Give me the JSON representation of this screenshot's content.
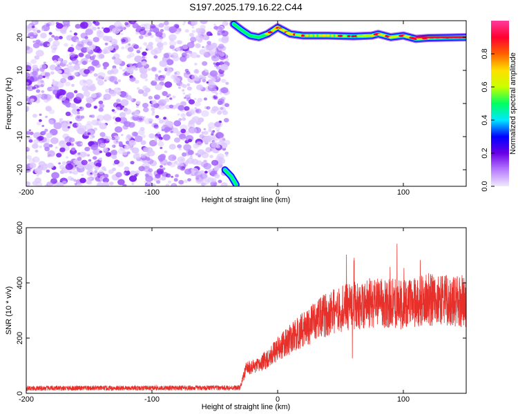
{
  "title": "S197.2025.179.16.22.C44",
  "chart_data": [
    {
      "type": "heatmap",
      "xlabel": "Height of straight line (km)",
      "ylabel": "Frequency (Hz)",
      "xlim": [
        -200,
        150
      ],
      "ylim": [
        -25,
        25
      ],
      "xticks": [
        -200,
        -100,
        0,
        100
      ],
      "yticks": [
        20,
        10,
        0,
        -10,
        -20
      ],
      "colorbar": {
        "label": "Normalized spectral amplitude",
        "range": [
          0,
          1
        ],
        "ticks": [
          0.0,
          0.2,
          0.4,
          0.6,
          0.8
        ],
        "colormap": [
          "#f0eaff",
          "#b77bff",
          "#6a00e6",
          "#0000ff",
          "#00e8ff",
          "#00ff60",
          "#c8ff00",
          "#ffe000",
          "#ff6000",
          "#ff0030",
          "#ff3a9e"
        ]
      },
      "noise_region": {
        "x": [
          -200,
          -40
        ],
        "y": [
          -25,
          25
        ]
      },
      "signal_ridge": {
        "description_points": [
          [
            -35,
            24
          ],
          [
            -28,
            22
          ],
          [
            -22,
            20.5
          ],
          [
            -15,
            20
          ],
          [
            -8,
            21
          ],
          [
            -2,
            22.5
          ],
          [
            0,
            23
          ],
          [
            5,
            22
          ],
          [
            10,
            21
          ],
          [
            20,
            20.5
          ],
          [
            40,
            20.5
          ],
          [
            60,
            20.3
          ],
          [
            75,
            20.5
          ],
          [
            80,
            21
          ],
          [
            90,
            20
          ],
          [
            100,
            20.5
          ],
          [
            110,
            19.5
          ],
          [
            120,
            19.8
          ],
          [
            150,
            20
          ]
        ]
      },
      "lower_branch": [
        [
          -42,
          -20
        ],
        [
          -37,
          -22
        ],
        [
          -33,
          -24.5
        ]
      ]
    },
    {
      "type": "line",
      "xlabel": "Height of straight line (km)",
      "ylabel": "SNR (10 * v/v)",
      "xlim": [
        -200,
        150
      ],
      "ylim": [
        0,
        600
      ],
      "xticks": [
        -200,
        -100,
        0,
        100
      ],
      "yticks": [
        0,
        200,
        400,
        600
      ],
      "series": [
        {
          "color": "#e8302b",
          "profile_x": [
            -200,
            -30,
            -25,
            -15,
            0,
            20,
            40,
            60,
            80,
            100,
            120,
            150
          ],
          "profile_mean": [
            18,
            20,
            90,
            100,
            160,
            230,
            290,
            320,
            330,
            320,
            340,
            330
          ]
        }
      ]
    }
  ]
}
